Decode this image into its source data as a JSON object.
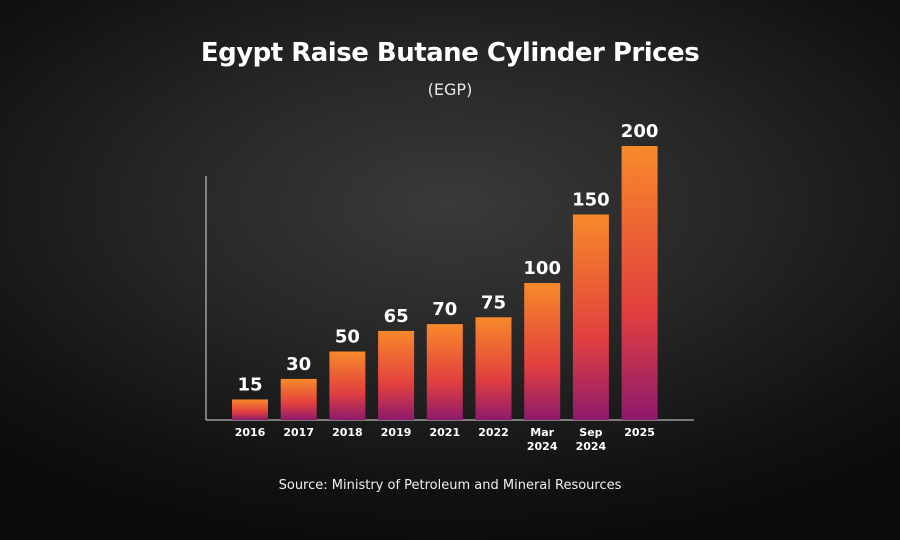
{
  "header": {
    "title": "Egypt Raise Butane Cylinder Prices",
    "subtitle": "(EGP)"
  },
  "footer": {
    "source": "Source: Ministry of Petroleum and Mineral Resources"
  },
  "colors": {
    "bar_top": "#f7892a",
    "bar_mid": "#e2403f",
    "bar_bottom": "#8e1a6c",
    "axis": "#dddddd",
    "text": "#ffffff"
  },
  "chart_data": {
    "type": "bar",
    "title": "Egypt Raise Butane Cylinder Prices",
    "subtitle": "(EGP)",
    "categories": [
      "2016",
      "2017",
      "2018",
      "2019",
      "2021",
      "2022",
      "Mar 2024",
      "Sep 2024",
      "2025"
    ],
    "values": [
      15,
      30,
      50,
      65,
      70,
      75,
      100,
      150,
      200
    ],
    "xlabel": "",
    "ylabel": "",
    "ylim": [
      0,
      200
    ],
    "grid": false,
    "data_labels": true
  }
}
